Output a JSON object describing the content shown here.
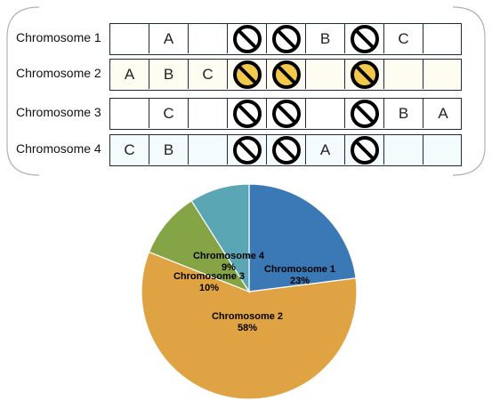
{
  "chromosomes": [
    {
      "label": "Chromosome  1",
      "cells": [
        "",
        "A",
        "",
        "no",
        "no",
        "B",
        "no",
        "C",
        ""
      ],
      "strip_color": "#ffffff",
      "no_fill": "#ffffff"
    },
    {
      "label": "Chromosome  2",
      "cells": [
        "A",
        "B",
        "C",
        "no",
        "no",
        "",
        "no",
        "",
        ""
      ],
      "strip_color": "#fffdf2",
      "no_fill": "#f2c94c"
    },
    {
      "label": "Chromosome  3",
      "cells": [
        "",
        "C",
        "",
        "no",
        "no",
        "",
        "no",
        "B",
        "A"
      ],
      "strip_color": "#ffffff",
      "no_fill": "#ffffff"
    },
    {
      "label": "Chromosome  4",
      "cells": [
        "C",
        "B",
        "",
        "no",
        "no",
        "A",
        "no",
        "",
        ""
      ],
      "strip_color": "#f4fbfd",
      "no_fill": "#ffffff"
    }
  ],
  "icons": {
    "blocked": "no-entry-icon"
  },
  "chart_data": {
    "type": "pie",
    "slices": [
      {
        "name": "Chromosome 1",
        "pct_label": "23%",
        "value": 23,
        "color": "#3b78b6"
      },
      {
        "name": "Chromosome 2",
        "pct_label": "58%",
        "value": 58,
        "color": "#e0a343"
      },
      {
        "name": "Chromosome 3",
        "pct_label": "10%",
        "value": 10,
        "color": "#84a445"
      },
      {
        "name": "Chromosome 4",
        "pct_label": "9%",
        "value": 9,
        "color": "#5aa6b4"
      }
    ]
  }
}
